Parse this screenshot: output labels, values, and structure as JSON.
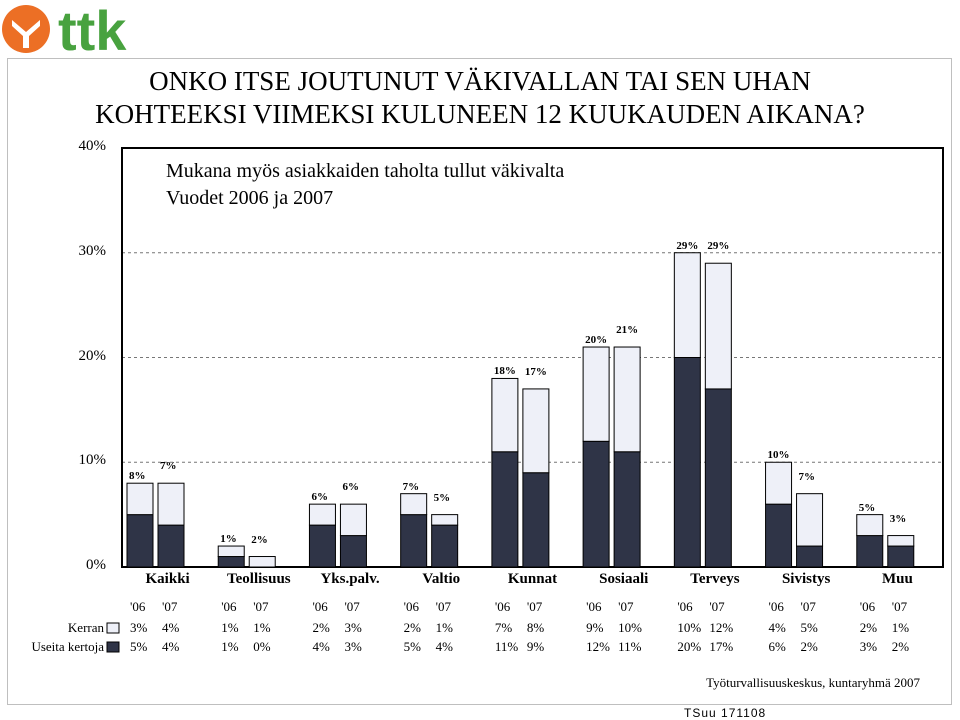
{
  "brand": {
    "name": "ttk",
    "orange": "#ec6f25",
    "green": "#48a23f"
  },
  "title_line1": "ONKO ITSE JOUTUNUT VÄKIVALLAN TAI SEN UHAN",
  "title_line2": "KOHTEEKSI VIIMEKSI KULUNEEN 12 KUUKAUDEN AIKANA?",
  "subtitle_line1": "Mukana myös asiakkaiden taholta tullut väkivalta",
  "subtitle_line2": "Vuodet 2006 ja 2007",
  "source": "Työturvallisuuskeskus, kuntaryhmä 2007",
  "footer": "TSuu 171108",
  "colors": {
    "once": "#eef0f8",
    "many": "#2f3447"
  },
  "chart_data": {
    "type": "bar",
    "stacked": true,
    "ylim": [
      0,
      40
    ],
    "yticks": [
      "0%",
      "10%",
      "20%",
      "30%",
      "40%"
    ],
    "categories": [
      "Kaikki",
      "Teollisuus",
      "Yks.palv.",
      "Valtio",
      "Kunnat",
      "Sosiaali",
      "Terveys",
      "Sivistys",
      "Muu"
    ],
    "years": [
      "'06",
      "'07"
    ],
    "series": [
      {
        "name": "Useita kertoja",
        "values": [
          [
            5,
            4
          ],
          [
            1,
            0
          ],
          [
            4,
            3
          ],
          [
            5,
            4
          ],
          [
            11,
            9
          ],
          [
            12,
            11
          ],
          [
            20,
            17
          ],
          [
            6,
            2
          ],
          [
            3,
            2
          ]
        ],
        "labels": [
          [
            "5%",
            "4%"
          ],
          [
            "1%",
            "0%"
          ],
          [
            "4%",
            "3%"
          ],
          [
            "5%",
            "4%"
          ],
          [
            "11%",
            "9%"
          ],
          [
            "12%",
            "11%"
          ],
          [
            "20%",
            "17%"
          ],
          [
            "6%",
            "2%"
          ],
          [
            "3%",
            "2%"
          ]
        ]
      },
      {
        "name": "Kerran",
        "values": [
          [
            3,
            4
          ],
          [
            1,
            1
          ],
          [
            2,
            3
          ],
          [
            2,
            1
          ],
          [
            7,
            8
          ],
          [
            9,
            10
          ],
          [
            10,
            12
          ],
          [
            4,
            5
          ],
          [
            2,
            1
          ]
        ],
        "labels": [
          [
            "3%",
            "4%"
          ],
          [
            "1%",
            "1%"
          ],
          [
            "2%",
            "3%"
          ],
          [
            "2%",
            "1%"
          ],
          [
            "7%",
            "8%"
          ],
          [
            "9%",
            "10%"
          ],
          [
            "10%",
            "12%"
          ],
          [
            "4%",
            "5%"
          ],
          [
            "2%",
            "1%"
          ]
        ]
      }
    ],
    "totals": [
      [
        "8%",
        "7%"
      ],
      [
        "1%",
        "2%"
      ],
      [
        "6%",
        "6%"
      ],
      [
        "7%",
        "5%"
      ],
      [
        "18%",
        "17%"
      ],
      [
        "20%",
        "21%"
      ],
      [
        "29%",
        "29%"
      ],
      [
        "10%",
        "7%"
      ],
      [
        "5%",
        "3%"
      ]
    ]
  }
}
